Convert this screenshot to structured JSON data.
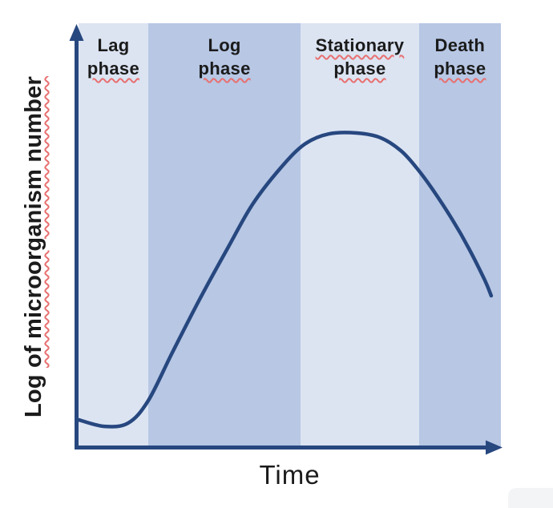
{
  "figure": {
    "ylabel_prefix": "Log ",
    "ylabel_underlined": "of microorganism number",
    "xlabel": "Time"
  },
  "chart_data": {
    "type": "line",
    "title": "",
    "xlabel": "Time",
    "ylabel": "Log of microorganism number",
    "x_axis": {
      "range": [
        0,
        1
      ],
      "ticks": [],
      "arrow": true
    },
    "y_axis": {
      "range": [
        0,
        1
      ],
      "ticks": [],
      "arrow": true
    },
    "grid": false,
    "legend": false,
    "phases": [
      {
        "name": "Lag phase",
        "line1": "Lag",
        "line2": "phase",
        "x_start": 0.0,
        "x_end": 0.165,
        "shade": "light",
        "line1_squiggle": false,
        "line2_squiggle": true
      },
      {
        "name": "Log phase",
        "line1": "Log",
        "line2": "phase",
        "x_start": 0.165,
        "x_end": 0.526,
        "shade": "dark",
        "line1_squiggle": false,
        "line2_squiggle": true
      },
      {
        "name": "Stationary phase",
        "line1": "Stationary",
        "line2": "phase",
        "x_start": 0.526,
        "x_end": 0.806,
        "shade": "light",
        "line1_squiggle": true,
        "line2_squiggle": true
      },
      {
        "name": "Death phase",
        "line1": "Death",
        "line2": "phase",
        "x_start": 0.806,
        "x_end": 1.0,
        "shade": "dark",
        "line1_squiggle": false,
        "line2_squiggle": true
      }
    ],
    "series": [
      {
        "name": "microbial growth curve",
        "points": [
          [
            0.0,
            0.087
          ],
          [
            0.061,
            0.066
          ],
          [
            0.118,
            0.077
          ],
          [
            0.165,
            0.148
          ],
          [
            0.222,
            0.301
          ],
          [
            0.288,
            0.474
          ],
          [
            0.355,
            0.638
          ],
          [
            0.412,
            0.773
          ],
          [
            0.478,
            0.888
          ],
          [
            0.535,
            0.964
          ],
          [
            0.592,
            0.997
          ],
          [
            0.659,
            1.0
          ],
          [
            0.715,
            0.985
          ],
          [
            0.763,
            0.944
          ],
          [
            0.801,
            0.888
          ],
          [
            0.839,
            0.819
          ],
          [
            0.886,
            0.722
          ],
          [
            0.924,
            0.633
          ],
          [
            0.962,
            0.531
          ],
          [
            0.977,
            0.482
          ]
        ]
      }
    ]
  },
  "colors": {
    "band_light": "#dce4f2",
    "band_dark": "#b7c7e4",
    "axis": "#27477f",
    "curve": "#27477f",
    "label_text": "#1b1b1b",
    "spellcheck_underline": "#e87070"
  }
}
